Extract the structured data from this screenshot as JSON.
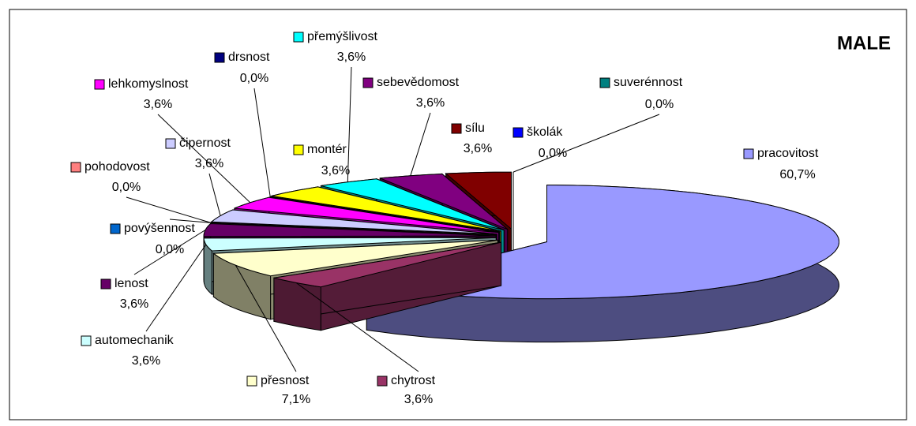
{
  "chart_data": {
    "type": "pie",
    "title": "MALE",
    "categories": [
      "pracovitost",
      "chytrost",
      "přesnost",
      "automechanik",
      "lenost",
      "povýšennost",
      "pohodovost",
      "čipernost",
      "lehkomyslnost",
      "drsnost",
      "montér",
      "přemýšlivost",
      "sebevědomost",
      "sílu",
      "školák",
      "suverénnost"
    ],
    "values": [
      60.7,
      3.6,
      7.1,
      3.6,
      3.6,
      0.0,
      0.0,
      3.6,
      3.6,
      0.0,
      3.6,
      3.6,
      3.6,
      3.6,
      0.0,
      0.0
    ],
    "value_labels": [
      "60,7%",
      "3,6%",
      "7,1%",
      "3,6%",
      "3,6%",
      "0,0%",
      "0,0%",
      "3,6%",
      "3,6%",
      "0,0%",
      "3,6%",
      "3,6%",
      "3,6%",
      "3,6%",
      "0,0%",
      "0,0%"
    ],
    "colors": [
      "#9999ff",
      "#993366",
      "#ffffcc",
      "#ccffff",
      "#660066",
      "#0066cc",
      "#ff8080",
      "#ccccff",
      "#ff00ff",
      "#000080",
      "#ffff00",
      "#00ffff",
      "#800080",
      "#800000",
      "#0000ff",
      "#008080"
    ]
  }
}
